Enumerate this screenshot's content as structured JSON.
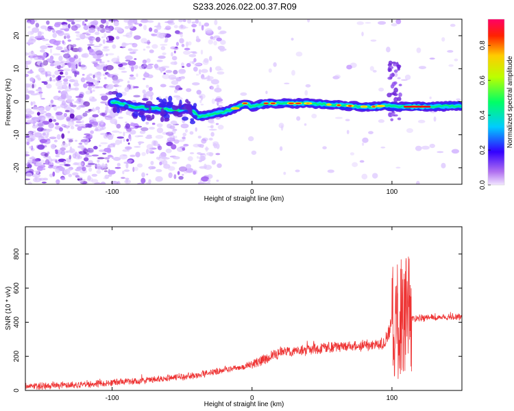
{
  "title": "S233.2026.022.00.37.R09",
  "chart_data": [
    {
      "type": "heatmap",
      "name": "spectrogram",
      "xlabel": "Height of straight line (km)",
      "ylabel": "Frequency (Hz)",
      "xlim": [
        -162,
        150
      ],
      "ylim": [
        -25,
        25
      ],
      "xticks": [
        -100,
        0,
        100
      ],
      "xtick_labels": [
        "-100",
        "0",
        "100"
      ],
      "yticks": [
        -20,
        -10,
        0,
        10,
        20
      ],
      "ytick_labels": [
        "-20",
        "-10",
        "0",
        "10",
        "20"
      ],
      "ridge": {
        "x": [
          -100,
          -85,
          -70,
          -55,
          -45,
          -38,
          -30,
          -20,
          -12,
          -5,
          0,
          10,
          20,
          40,
          60,
          80,
          90,
          95,
          100,
          110,
          130,
          150
        ],
        "freq": [
          0,
          -1.5,
          -2,
          -2.5,
          -2,
          -4.5,
          -4,
          -3,
          -2,
          -0.5,
          -1.5,
          -0.5,
          -0.5,
          -0.5,
          -1,
          -1.5,
          -1.5,
          -1,
          -1.5,
          -1.5,
          -1.5,
          -1.2
        ]
      },
      "colorbar": {
        "label": "Normalized spectral amplitude",
        "range": [
          0,
          0.95
        ],
        "ticks": [
          0.0,
          0.2,
          0.4,
          0.6,
          0.8
        ],
        "tick_labels": [
          "0.0",
          "0.2",
          "0.4",
          "0.6",
          "0.8"
        ]
      }
    },
    {
      "type": "line",
      "name": "snr",
      "xlabel": "Height of straight line (km)",
      "ylabel": "SNR (10 * v/v)",
      "xlim": [
        -162,
        150
      ],
      "ylim": [
        0,
        960
      ],
      "xticks": [
        -100,
        0,
        100
      ],
      "xtick_labels": [
        "-100",
        "0",
        "100"
      ],
      "yticks": [
        0,
        200,
        400,
        600,
        800
      ],
      "ytick_labels": [
        "0",
        "200",
        "400",
        "600",
        "800"
      ],
      "color": "#ee3333",
      "trend": {
        "x": [
          -162,
          -140,
          -120,
          -100,
          -80,
          -60,
          -40,
          -20,
          0,
          10,
          20,
          40,
          60,
          80,
          95,
          100,
          105,
          110,
          115,
          130,
          150
        ],
        "y": [
          25,
          30,
          35,
          45,
          55,
          70,
          90,
          120,
          150,
          190,
          220,
          240,
          255,
          265,
          275,
          400,
          420,
          430,
          420,
          430,
          430
        ]
      },
      "noise_amplitude": [
        {
          "from": -162,
          "to": 0,
          "amp": 35
        },
        {
          "from": 0,
          "to": 95,
          "amp": 55
        },
        {
          "from": 95,
          "to": 100,
          "amp": 90
        },
        {
          "from": 100,
          "to": 114,
          "amp": 450
        },
        {
          "from": 114,
          "to": 150,
          "amp": 35
        }
      ]
    }
  ]
}
